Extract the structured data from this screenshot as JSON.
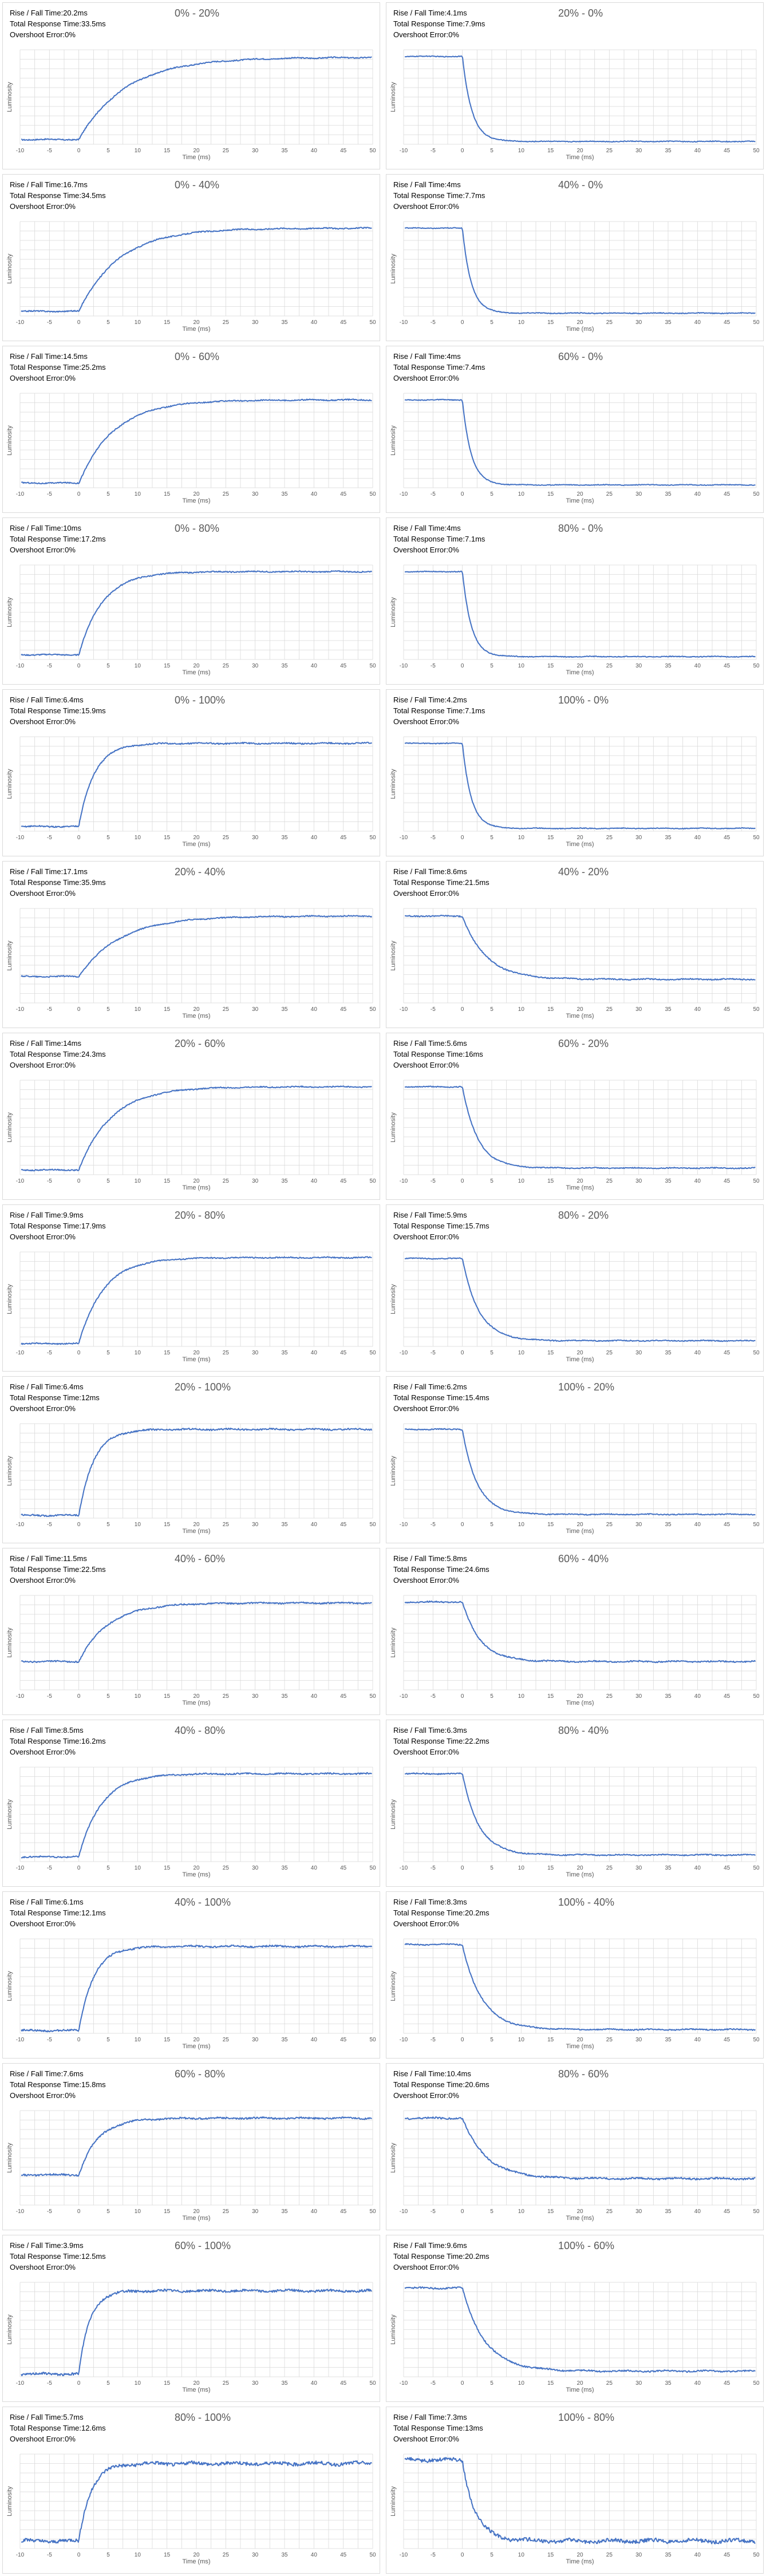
{
  "labels": {
    "rise_fall": "Rise / Fall Time:",
    "total": "Total Response Time:",
    "overshoot": "Overshoot Error:"
  },
  "colors": {
    "series": "#4472c4",
    "grid": "#d9d9d9",
    "axis_text": "#595959"
  },
  "axes": {
    "xlabel": "Time (ms)",
    "ylabel": "Luminosity",
    "xlim": [
      -10,
      50
    ],
    "x_ticks": [
      -10,
      -5,
      0,
      5,
      10,
      15,
      20,
      25,
      30,
      35,
      40,
      45,
      50
    ]
  },
  "chart_data": [
    {
      "type": "line",
      "title": "0% - 20%",
      "rise_fall": "20.2ms",
      "total": "33.5ms",
      "overshoot": "0%",
      "direction": "rise",
      "from_level": 0.05,
      "to_level": 0.92,
      "tau_ms": 8.0,
      "noise": 0.006
    },
    {
      "type": "line",
      "title": "20% - 0%",
      "rise_fall": "4.1ms",
      "total": "7.9ms",
      "overshoot": "0%",
      "direction": "fall",
      "from_level": 0.93,
      "to_level": 0.03,
      "tau_ms": 1.6,
      "noise": 0.004
    },
    {
      "type": "line",
      "title": "0% - 40%",
      "rise_fall": "16.7ms",
      "total": "34.5ms",
      "overshoot": "0%",
      "direction": "rise",
      "from_level": 0.05,
      "to_level": 0.93,
      "tau_ms": 6.8,
      "noise": 0.006
    },
    {
      "type": "line",
      "title": "40% - 0%",
      "rise_fall": "4ms",
      "total": "7.7ms",
      "overshoot": "0%",
      "direction": "fall",
      "from_level": 0.93,
      "to_level": 0.03,
      "tau_ms": 1.5,
      "noise": 0.004
    },
    {
      "type": "line",
      "title": "0% - 60%",
      "rise_fall": "14.5ms",
      "total": "25.2ms",
      "overshoot": "0%",
      "direction": "rise",
      "from_level": 0.05,
      "to_level": 0.93,
      "tau_ms": 6.0,
      "noise": 0.006
    },
    {
      "type": "line",
      "title": "60% - 0%",
      "rise_fall": "4ms",
      "total": "7.4ms",
      "overshoot": "0%",
      "direction": "fall",
      "from_level": 0.93,
      "to_level": 0.03,
      "tau_ms": 1.5,
      "noise": 0.004
    },
    {
      "type": "line",
      "title": "0% - 80%",
      "rise_fall": "10ms",
      "total": "17.2ms",
      "overshoot": "0%",
      "direction": "rise",
      "from_level": 0.05,
      "to_level": 0.93,
      "tau_ms": 4.0,
      "noise": 0.006
    },
    {
      "type": "line",
      "title": "80% - 0%",
      "rise_fall": "4ms",
      "total": "7.1ms",
      "overshoot": "0%",
      "direction": "fall",
      "from_level": 0.93,
      "to_level": 0.03,
      "tau_ms": 1.5,
      "noise": 0.004
    },
    {
      "type": "line",
      "title": "0% - 100%",
      "rise_fall": "6.4ms",
      "total": "15.9ms",
      "overshoot": "0%",
      "direction": "rise",
      "from_level": 0.05,
      "to_level": 0.93,
      "tau_ms": 2.6,
      "noise": 0.007
    },
    {
      "type": "line",
      "title": "100% - 0%",
      "rise_fall": "4.2ms",
      "total": "7.1ms",
      "overshoot": "0%",
      "direction": "fall",
      "from_level": 0.93,
      "to_level": 0.03,
      "tau_ms": 1.5,
      "noise": 0.004
    },
    {
      "type": "line",
      "title": "20% - 40%",
      "rise_fall": "17.1ms",
      "total": "35.9ms",
      "overshoot": "0%",
      "direction": "rise",
      "from_level": 0.28,
      "to_level": 0.92,
      "tau_ms": 7.0,
      "noise": 0.006
    },
    {
      "type": "line",
      "title": "40% - 20%",
      "rise_fall": "8.6ms",
      "total": "21.5ms",
      "overshoot": "0%",
      "direction": "fall",
      "from_level": 0.92,
      "to_level": 0.25,
      "tau_ms": 4.0,
      "noise": 0.006
    },
    {
      "type": "line",
      "title": "20% - 60%",
      "rise_fall": "14ms",
      "total": "24.3ms",
      "overshoot": "0%",
      "direction": "rise",
      "from_level": 0.05,
      "to_level": 0.93,
      "tau_ms": 5.5,
      "noise": 0.006
    },
    {
      "type": "line",
      "title": "60% - 20%",
      "rise_fall": "5.6ms",
      "total": "16ms",
      "overshoot": "0%",
      "direction": "fall",
      "from_level": 0.93,
      "to_level": 0.07,
      "tau_ms": 2.6,
      "noise": 0.005
    },
    {
      "type": "line",
      "title": "20% - 80%",
      "rise_fall": "9.9ms",
      "total": "17.9ms",
      "overshoot": "0%",
      "direction": "rise",
      "from_level": 0.03,
      "to_level": 0.94,
      "tau_ms": 4.2,
      "noise": 0.006
    },
    {
      "type": "line",
      "title": "80% - 20%",
      "rise_fall": "5.9ms",
      "total": "15.7ms",
      "overshoot": "0%",
      "direction": "fall",
      "from_level": 0.93,
      "to_level": 0.06,
      "tau_ms": 2.8,
      "noise": 0.005
    },
    {
      "type": "line",
      "title": "20% - 100%",
      "rise_fall": "6.4ms",
      "total": "12ms",
      "overshoot": "0%",
      "direction": "rise",
      "from_level": 0.03,
      "to_level": 0.94,
      "tau_ms": 2.5,
      "noise": 0.008
    },
    {
      "type": "line",
      "title": "100% - 20%",
      "rise_fall": "6.2ms",
      "total": "15.4ms",
      "overshoot": "0%",
      "direction": "fall",
      "from_level": 0.94,
      "to_level": 0.04,
      "tau_ms": 2.5,
      "noise": 0.005
    },
    {
      "type": "line",
      "title": "40% - 60%",
      "rise_fall": "11.5ms",
      "total": "22.5ms",
      "overshoot": "0%",
      "direction": "rise",
      "from_level": 0.3,
      "to_level": 0.92,
      "tau_ms": 5.0,
      "noise": 0.007
    },
    {
      "type": "line",
      "title": "60% - 40%",
      "rise_fall": "5.8ms",
      "total": "24.6ms",
      "overshoot": "0%",
      "direction": "fall",
      "from_level": 0.93,
      "to_level": 0.3,
      "tau_ms": 3.0,
      "noise": 0.007
    },
    {
      "type": "line",
      "title": "40% - 80%",
      "rise_fall": "8.5ms",
      "total": "16.2ms",
      "overshoot": "0%",
      "direction": "rise",
      "from_level": 0.05,
      "to_level": 0.93,
      "tau_ms": 3.8,
      "noise": 0.007
    },
    {
      "type": "line",
      "title": "80% - 40%",
      "rise_fall": "6.3ms",
      "total": "22.2ms",
      "overshoot": "0%",
      "direction": "fall",
      "from_level": 0.93,
      "to_level": 0.07,
      "tau_ms": 2.8,
      "noise": 0.006
    },
    {
      "type": "line",
      "title": "40% - 100%",
      "rise_fall": "6.1ms",
      "total": "12.1ms",
      "overshoot": "0%",
      "direction": "rise",
      "from_level": 0.03,
      "to_level": 0.92,
      "tau_ms": 2.5,
      "noise": 0.009
    },
    {
      "type": "line",
      "title": "100% - 40%",
      "rise_fall": "8.3ms",
      "total": "20.2ms",
      "overshoot": "0%",
      "direction": "fall",
      "from_level": 0.94,
      "to_level": 0.04,
      "tau_ms": 3.3,
      "noise": 0.006
    },
    {
      "type": "line",
      "title": "60% - 80%",
      "rise_fall": "7.6ms",
      "total": "15.8ms",
      "overshoot": "0%",
      "direction": "rise",
      "from_level": 0.32,
      "to_level": 0.92,
      "tau_ms": 3.2,
      "noise": 0.009
    },
    {
      "type": "line",
      "title": "80% - 60%",
      "rise_fall": "10.4ms",
      "total": "20.6ms",
      "overshoot": "0%",
      "direction": "fall",
      "from_level": 0.92,
      "to_level": 0.28,
      "tau_ms": 4.0,
      "noise": 0.009
    },
    {
      "type": "line",
      "title": "60% - 100%",
      "rise_fall": "3.9ms",
      "total": "12.5ms",
      "overshoot": "0%",
      "direction": "rise",
      "from_level": 0.03,
      "to_level": 0.91,
      "tau_ms": 1.8,
      "noise": 0.012
    },
    {
      "type": "line",
      "title": "100% - 60%",
      "rise_fall": "9.6ms",
      "total": "20.2ms",
      "overshoot": "0%",
      "direction": "fall",
      "from_level": 0.94,
      "to_level": 0.06,
      "tau_ms": 3.8,
      "noise": 0.008
    },
    {
      "type": "line",
      "title": "80% - 100%",
      "rise_fall": "5.7ms",
      "total": "12.6ms",
      "overshoot": "0%",
      "direction": "rise",
      "from_level": 0.08,
      "to_level": 0.9,
      "tau_ms": 2.0,
      "noise": 0.018
    },
    {
      "type": "line",
      "title": "100% - 80%",
      "rise_fall": "7.3ms",
      "total": "13ms",
      "overshoot": "0%",
      "direction": "fall",
      "from_level": 0.94,
      "to_level": 0.08,
      "tau_ms": 2.2,
      "noise": 0.02
    }
  ]
}
